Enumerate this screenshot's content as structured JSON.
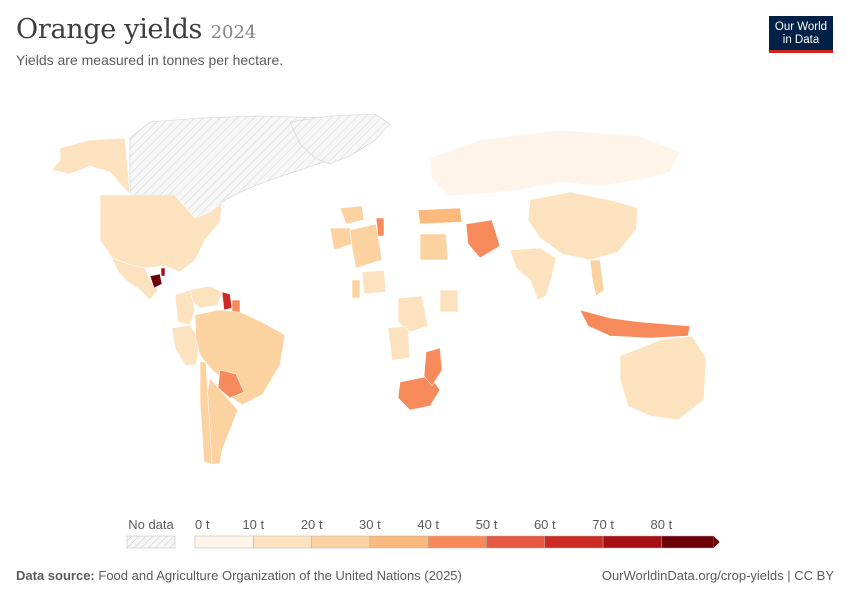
{
  "header": {
    "title": "Orange yields",
    "year": "2024",
    "subtitle": "Yields are measured in tonnes per hectare."
  },
  "logo": {
    "line1": "Our World",
    "line2": "in Data",
    "bg": "#002147",
    "accent": "#ce261e"
  },
  "legend": {
    "no_data_label": "No data",
    "labels": [
      "0 t",
      "10 t",
      "20 t",
      "30 t",
      "40 t",
      "50 t",
      "60 t",
      "70 t",
      "80 t"
    ],
    "colors": [
      "#fef4e9",
      "#fde2c0",
      "#fcd2a0",
      "#fbb97e",
      "#f78a5a",
      "#e6583f",
      "#cc2a22",
      "#a50f15",
      "#6b0009"
    ]
  },
  "map": {
    "no_data_color": "#f2f2f2",
    "regions": [
      {
        "name": "Canada",
        "value": null
      },
      {
        "name": "Greenland",
        "value": null
      },
      {
        "name": "Alaska",
        "value": 15
      },
      {
        "name": "United States",
        "value": 17
      },
      {
        "name": "Mexico",
        "value": 15
      },
      {
        "name": "Guatemala",
        "value": 85
      },
      {
        "name": "Belize",
        "value": 72
      },
      {
        "name": "Guyana",
        "value": 60
      },
      {
        "name": "Suriname",
        "value": 40
      },
      {
        "name": "Venezuela",
        "value": 18
      },
      {
        "name": "Colombia",
        "value": 15
      },
      {
        "name": "Peru",
        "value": 12
      },
      {
        "name": "Brazil",
        "value": 26
      },
      {
        "name": "Paraguay",
        "value": 48
      },
      {
        "name": "Argentina",
        "value": 24
      },
      {
        "name": "Chile",
        "value": 22
      },
      {
        "name": "Spain",
        "value": 28
      },
      {
        "name": "Morocco",
        "value": 25
      },
      {
        "name": "Algeria",
        "value": 20
      },
      {
        "name": "Tunisia",
        "value": 45
      },
      {
        "name": "Egypt",
        "value": 26
      },
      {
        "name": "Turkey",
        "value": 38
      },
      {
        "name": "Iran",
        "value": 40
      },
      {
        "name": "Russia",
        "value": 5
      },
      {
        "name": "China",
        "value": 15
      },
      {
        "name": "India",
        "value": 14
      },
      {
        "name": "Thailand",
        "value": 25
      },
      {
        "name": "Indonesia",
        "value": 42
      },
      {
        "name": "Australia",
        "value": 16
      },
      {
        "name": "South Africa",
        "value": 45
      },
      {
        "name": "Mozambique",
        "value": 44
      },
      {
        "name": "Angola",
        "value": 10
      },
      {
        "name": "DR Congo",
        "value": 12
      },
      {
        "name": "Nigeria",
        "value": 12
      },
      {
        "name": "Ghana",
        "value": 28
      },
      {
        "name": "Kenya",
        "value": 10
      }
    ]
  },
  "footer": {
    "source_label": "Data source:",
    "source_text": "Food and Agriculture Organization of the United Nations (2025)",
    "right_text": "OurWorldinData.org/crop-yields | CC BY"
  }
}
